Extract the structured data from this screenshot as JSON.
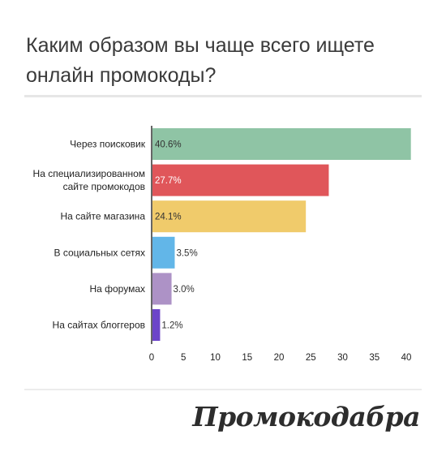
{
  "chart_data": {
    "type": "bar",
    "orientation": "horizontal",
    "title": "Каким образом вы чаще всего ищете\nонлайн промокоды?",
    "categories": [
      "Через поисковик",
      "На специализированном\nсайте промокодов",
      "На сайте магазина",
      "В социальных сетях",
      "На форумах",
      "На сайтах блоггеров"
    ],
    "values": [
      40.6,
      27.7,
      24.1,
      3.5,
      3.0,
      1.2
    ],
    "value_labels": [
      "40.6%",
      "27.7%",
      "24.1%",
      "3.5%",
      "3.0%",
      "1.2%"
    ],
    "colors": [
      "#8fc4a5",
      "#e0565a",
      "#f0cb6b",
      "#62b6e8",
      "#ad92c6",
      "#6c45c9"
    ],
    "value_label_colors": [
      "#333333",
      "#ffffff",
      "#333333",
      "#333333",
      "#333333",
      "#333333"
    ],
    "xticks": [
      0,
      5,
      10,
      15,
      20,
      25,
      30,
      35,
      40
    ],
    "xlim": [
      0,
      41.5
    ],
    "grid": false,
    "legend": "none"
  },
  "brand": {
    "name": "Промокодабра"
  }
}
